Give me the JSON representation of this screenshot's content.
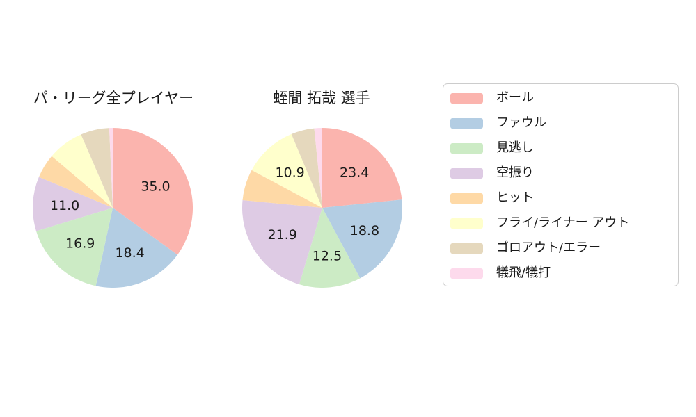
{
  "figure": {
    "background": "#ffffff",
    "text_color": "#1a1a1a",
    "legend_border_color": "#cccccc"
  },
  "chart_data": [
    {
      "type": "pie",
      "title": "パ・リーグ全プレイヤー",
      "categories": [
        "ボール",
        "ファウル",
        "見逃し",
        "空振り",
        "ヒット",
        "フライ/ライナー アウト",
        "ゴロアウト/エラー",
        "犠飛/犠打"
      ],
      "values": [
        35.0,
        18.4,
        16.9,
        11.0,
        4.9,
        7.3,
        5.8,
        0.7
      ],
      "pct_labels": [
        "35.0",
        "18.4",
        "16.9",
        "11.0",
        null,
        null,
        null,
        null
      ],
      "colors": [
        "#fbb4ae",
        "#b3cde3",
        "#ccebc5",
        "#decbe4",
        "#fed9a6",
        "#ffffcc",
        "#e5d8bd",
        "#fddaec"
      ],
      "start_angle": "12-oclock",
      "direction": "clockwise",
      "label_distance": 0.6
    },
    {
      "type": "pie",
      "title": "蛭間 拓哉 選手",
      "categories": [
        "ボール",
        "ファウル",
        "見逃し",
        "空振り",
        "ヒット",
        "フライ/ライナー アウト",
        "ゴロアウト/エラー",
        "犠飛/犠打"
      ],
      "values": [
        23.4,
        18.8,
        12.5,
        21.9,
        6.3,
        10.9,
        4.7,
        1.6
      ],
      "pct_labels": [
        "23.4",
        "18.8",
        "12.5",
        "21.9",
        null,
        "10.9",
        null,
        null
      ],
      "colors": [
        "#fbb4ae",
        "#b3cde3",
        "#ccebc5",
        "#decbe4",
        "#fed9a6",
        "#ffffcc",
        "#e5d8bd",
        "#fddaec"
      ],
      "start_angle": "12-oclock",
      "direction": "clockwise",
      "label_distance": 0.6
    }
  ],
  "legend": {
    "position": "right",
    "items": [
      {
        "label": "ボール",
        "color": "#fbb4ae"
      },
      {
        "label": "ファウル",
        "color": "#b3cde3"
      },
      {
        "label": "見逃し",
        "color": "#ccebc5"
      },
      {
        "label": "空振り",
        "color": "#decbe4"
      },
      {
        "label": "ヒット",
        "color": "#fed9a6"
      },
      {
        "label": "フライ/ライナー アウト",
        "color": "#ffffcc"
      },
      {
        "label": "ゴロアウト/エラー",
        "color": "#e5d8bd"
      },
      {
        "label": "犠飛/犠打",
        "color": "#fddaec"
      }
    ]
  }
}
